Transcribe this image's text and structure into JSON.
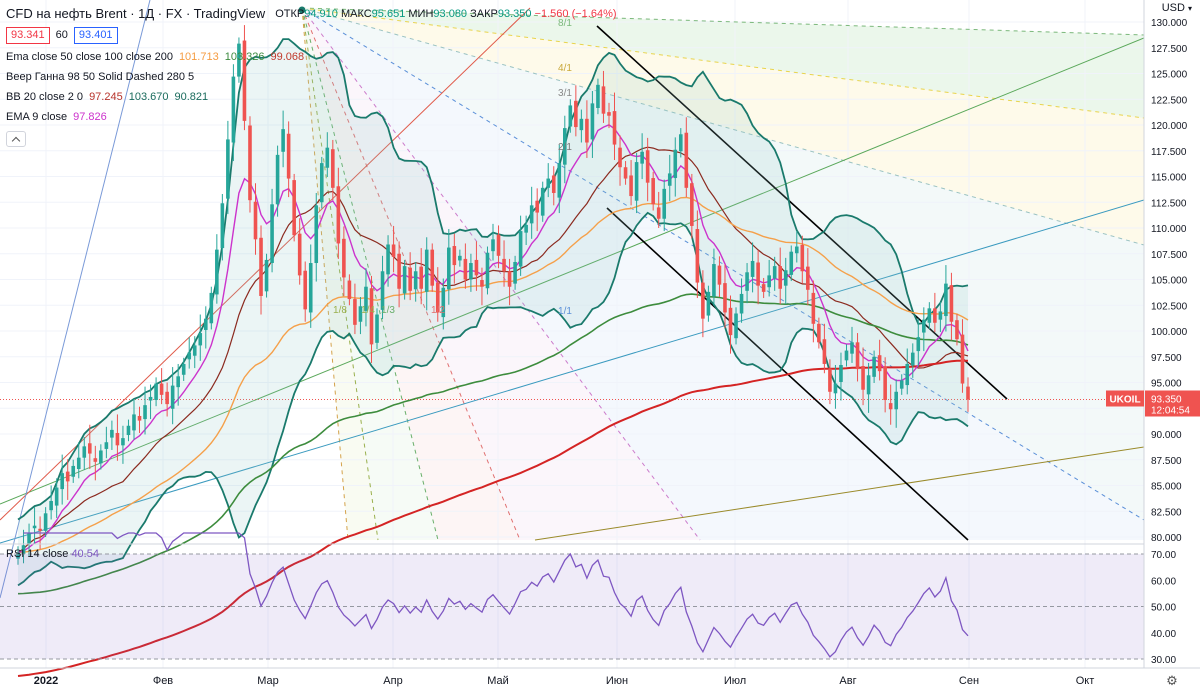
{
  "header": {
    "title": "CFD на нефть Brent · 1Д · FX · TradingView",
    "ohlc": {
      "o_label": "ОТКР",
      "o": "94.910",
      "h_label": "МАКС",
      "h": "95.651",
      "l_label": "МИН",
      "l": "93.080",
      "c_label": "ЗАКР",
      "c": "93.350",
      "change": "−1.560 (−1.64%)"
    },
    "bid": "93.341",
    "spread": "60",
    "ask": "93.401"
  },
  "indicators": [
    {
      "label": "Ema close 50 close 100 close 200",
      "values": [
        "101.713",
        "103.326",
        "99.068"
      ],
      "colors": [
        "#f59c42",
        "#5f8f3e",
        "#c0392b"
      ]
    },
    {
      "label": "Веер Ганна 98 50 Solid Dashed 280 5",
      "values": []
    },
    {
      "label": "BB 20 close 2 0",
      "values": [
        "97.245",
        "103.670",
        "90.821"
      ],
      "colors": [
        "#b7332b",
        "#1a6b5c",
        "#1a6b5c"
      ]
    },
    {
      "label": "EMA 9 close",
      "values": [
        "97.826"
      ],
      "colors": [
        "#cc33cc"
      ]
    }
  ],
  "price_axis": {
    "currency": "USD",
    "ticks": [
      "130.000",
      "127.500",
      "125.000",
      "122.500",
      "120.000",
      "117.500",
      "115.000",
      "112.500",
      "110.000",
      "107.500",
      "105.000",
      "102.500",
      "100.000",
      "97.500",
      "95.000",
      "92.500",
      "90.000",
      "87.500",
      "85.000",
      "82.500",
      "80.000"
    ],
    "symbol_tag": "UKOIL",
    "last_price": "93.350",
    "countdown": "12:04:54"
  },
  "rsi": {
    "label": "RSI 14 close",
    "value": "40.54",
    "ticks": [
      "70.00",
      "60.00",
      "50.00",
      "40.00",
      "30.00"
    ]
  },
  "time_axis": {
    "labels": [
      "2022",
      "Фев",
      "Мар",
      "Апр",
      "Май",
      "Июн",
      "Июл",
      "Авг",
      "Сен",
      "Окт"
    ]
  },
  "gann_labels": [
    "8/1",
    "4/1",
    "3/1",
    "2/1",
    "1/1",
    "1/8",
    "1/4",
    "1/3",
    "1/2"
  ],
  "chart_data": {
    "type": "candlestick",
    "title": "CFD на нефть Brent, 1Д, FX",
    "symbol": "UKOIL",
    "ylim": [
      80,
      130
    ],
    "x_labels": [
      "2022",
      "Фев",
      "Мар",
      "Апр",
      "Май",
      "Июн",
      "Июл",
      "Авг",
      "Сен",
      "Окт"
    ],
    "closes": [
      78.5,
      79.2,
      80.4,
      81.1,
      80.6,
      82.3,
      83.5,
      84.8,
      86.2,
      85.4,
      86.9,
      87.7,
      88.8,
      88.1,
      87.3,
      88.4,
      89.2,
      90.4,
      88.9,
      89.6,
      90.8,
      91.9,
      91.3,
      92.8,
      93.6,
      94.9,
      93.8,
      92.9,
      94.7,
      95.6,
      96.8,
      97.9,
      98.6,
      99.8,
      101.2,
      103.7,
      107.9,
      112.4,
      118.6,
      124.7,
      127.9,
      120.4,
      112.7,
      108.9,
      103.4,
      106.9,
      112.3,
      117.1,
      119.6,
      114.8,
      109.3,
      105.4,
      102.1,
      106.6,
      112.2,
      116.3,
      117.8,
      113.9,
      108.5,
      105.2,
      103.1,
      100.6,
      102.4,
      104.3,
      98.7,
      101.6,
      105.8,
      108.4,
      107.2,
      104.1,
      106.3,
      103.9,
      105.8,
      104.1,
      107.9,
      104.4,
      101.8,
      104.2,
      108.1,
      106.4,
      107.3,
      105.0,
      106.6,
      105.4,
      104.3,
      107.6,
      108.9,
      107.3,
      105.8,
      104.3,
      106.7,
      109.7,
      110.3,
      112.2,
      111.5,
      113.9,
      114.8,
      113.4,
      116.3,
      119.7,
      121.9,
      119.8,
      120.6,
      118.3,
      122.1,
      123.9,
      121.1,
      120.9,
      118.1,
      115.9,
      114.8,
      113.1,
      116.4,
      117.4,
      114.4,
      112.3,
      110.9,
      113.8,
      115.3,
      117.6,
      119.1,
      113.9,
      110.2,
      104.7,
      101.2,
      103.8,
      106.5,
      104.5,
      101.8,
      99.6,
      101.7,
      103.6,
      105.7,
      106.8,
      104.4,
      103.8,
      105.4,
      106.3,
      104.1,
      105.9,
      107.7,
      108.2,
      105.8,
      104.0,
      100.7,
      98.9,
      96.8,
      94.1,
      94.9,
      96.7,
      98.1,
      98.9,
      96.3,
      94.3,
      95.7,
      97.5,
      96.1,
      93.3,
      92.4,
      94.1,
      95.2,
      96.8,
      97.9,
      99.4,
      101.1,
      102.2,
      100.8,
      101.9,
      104.6,
      100.9,
      99.2,
      94.9,
      93.35
    ],
    "rsi_ticks": [
      70,
      60,
      50,
      40,
      30
    ],
    "rsi_last": 40.54
  }
}
